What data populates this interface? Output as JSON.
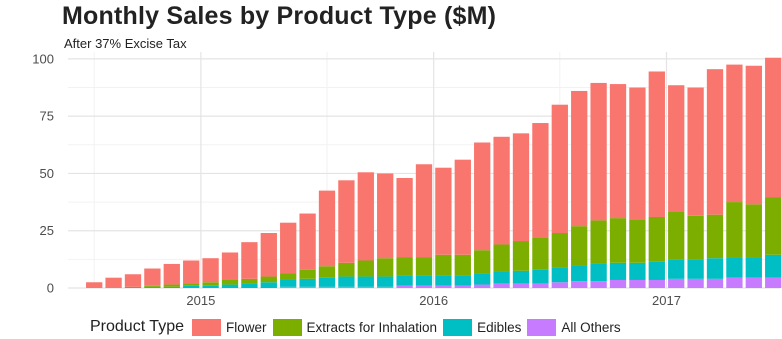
{
  "chart_data": {
    "type": "bar",
    "stacked": true,
    "title": "Monthly Sales by Product Type ($M)",
    "subtitle": "After 37% Excise Tax",
    "xlabel": "",
    "ylabel": "",
    "ylim": [
      0,
      103
    ],
    "yticks": [
      0,
      25,
      50,
      75,
      100
    ],
    "xticks": [
      {
        "label": "2015",
        "at": "2015-01"
      },
      {
        "label": "2016",
        "at": "2016-01"
      },
      {
        "label": "2017",
        "at": "2017-01"
      }
    ],
    "grid": true,
    "legend_position": "bottom",
    "legend_title": "Product Type",
    "categories": [
      "2014-07",
      "2014-08",
      "2014-09",
      "2014-10",
      "2014-11",
      "2014-12",
      "2015-01",
      "2015-02",
      "2015-03",
      "2015-04",
      "2015-05",
      "2015-06",
      "2015-07",
      "2015-08",
      "2015-09",
      "2015-10",
      "2015-11",
      "2015-12",
      "2016-01",
      "2016-02",
      "2016-03",
      "2016-04",
      "2016-05",
      "2016-06",
      "2016-07",
      "2016-08",
      "2016-09",
      "2016-10",
      "2016-11",
      "2016-12",
      "2017-01",
      "2017-02",
      "2017-03",
      "2017-04",
      "2017-05",
      "2017-06"
    ],
    "series": [
      {
        "name": "All Others",
        "color": "#C77CFF",
        "values": [
          0,
          0,
          0,
          0,
          0,
          0,
          0,
          0,
          0,
          0,
          0.5,
          0.5,
          0.5,
          0.5,
          0.5,
          0.5,
          1,
          1,
          1,
          1,
          1.5,
          2,
          2,
          2,
          2.5,
          3,
          3,
          3.5,
          3.5,
          3.5,
          4,
          4,
          4,
          4.5,
          4.5,
          4.5
        ]
      },
      {
        "name": "Edibles",
        "color": "#00BFC4",
        "values": [
          0,
          0,
          0,
          0.5,
          0.5,
          1,
          1,
          1.5,
          2,
          2.5,
          3,
          3.5,
          4,
          4.5,
          4.5,
          4.5,
          4.5,
          4.5,
          4.5,
          4.5,
          5,
          5,
          5.5,
          6,
          6.5,
          7,
          7.5,
          7.5,
          7.5,
          8,
          8.5,
          8.5,
          9,
          9,
          9,
          10
        ]
      },
      {
        "name": "Extracts for Inhalation",
        "color": "#7CAE00",
        "values": [
          0,
          0,
          0.5,
          0.5,
          1,
          1,
          1.5,
          2,
          2,
          2.5,
          3,
          4,
          5,
          6,
          7,
          8,
          8,
          8,
          9,
          9,
          10,
          12,
          13,
          14,
          15,
          17,
          19,
          19.5,
          19,
          19.5,
          21,
          19,
          19,
          24,
          23,
          25
        ]
      },
      {
        "name": "Flower",
        "color": "#F8766D",
        "values": [
          2.5,
          4.5,
          5.5,
          7.5,
          9,
          10,
          10.5,
          12,
          16,
          19,
          22,
          24.5,
          33,
          36,
          38.5,
          37,
          34.5,
          40.5,
          38,
          41.5,
          47,
          47,
          47,
          50,
          56,
          59,
          60,
          58.5,
          57.5,
          63.5,
          55,
          56,
          63.5,
          60,
          60.5,
          61
        ]
      }
    ],
    "legend_order": [
      "Flower",
      "Extracts for Inhalation",
      "Edibles",
      "All Others"
    ]
  }
}
